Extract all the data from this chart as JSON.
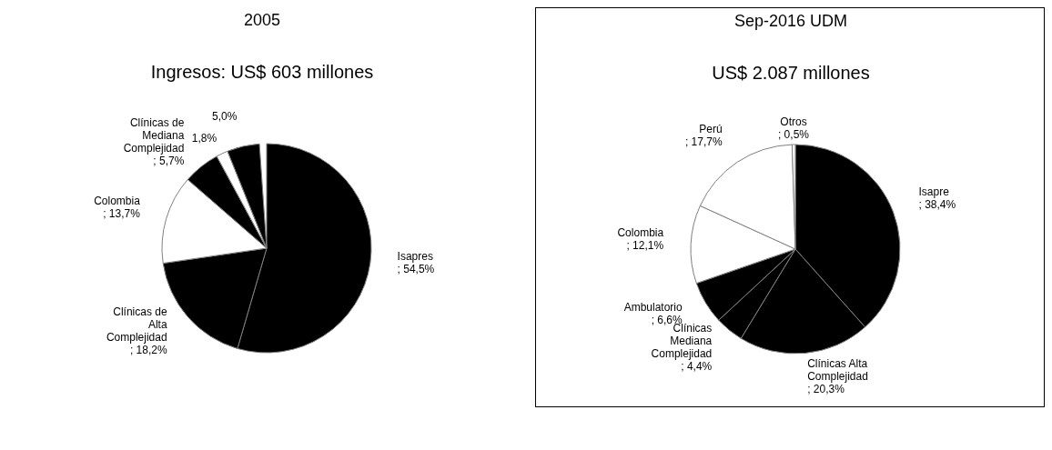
{
  "chart_data": [
    {
      "type": "pie",
      "title": "2005",
      "subtitle": "Ingresos: US$ 603 millones",
      "categories": [
        "Isapres",
        "Clínicas de Alta Complejidad",
        "Colombia",
        "Clínicas de Mediana Complejidad",
        null,
        null
      ],
      "values": [
        54.5,
        18.2,
        13.7,
        5.7,
        1.8,
        5.0
      ],
      "value_labels": [
        "; 54,5%",
        "; 18,2%",
        "; 13,7%",
        "; 5,7%",
        "1,8%",
        "5,0%"
      ],
      "colors": [
        "#000000",
        "#000000",
        "#ffffff",
        "#000000",
        "#ffffff",
        "#000000"
      ]
    },
    {
      "type": "pie",
      "title": "Sep-2016 UDM",
      "subtitle": "US$ 2.087 millones",
      "categories": [
        "Isapre",
        "Clínicas Alta Complejidad",
        "Clínicas Mediana Complejidad",
        "Ambulatorio",
        "Colombia",
        "Perú",
        "Otros"
      ],
      "values": [
        38.4,
        20.3,
        4.4,
        6.6,
        12.1,
        17.7,
        0.5
      ],
      "value_labels": [
        "; 38,4%",
        "; 20,3%",
        "; 4,4%",
        "; 6,6%",
        "; 12,1%",
        "; 17,7%",
        "; 0,5%"
      ],
      "colors": [
        "#000000",
        "#000000",
        "#000000",
        "#000000",
        "#ffffff",
        "#ffffff",
        "#ffffff"
      ]
    }
  ]
}
